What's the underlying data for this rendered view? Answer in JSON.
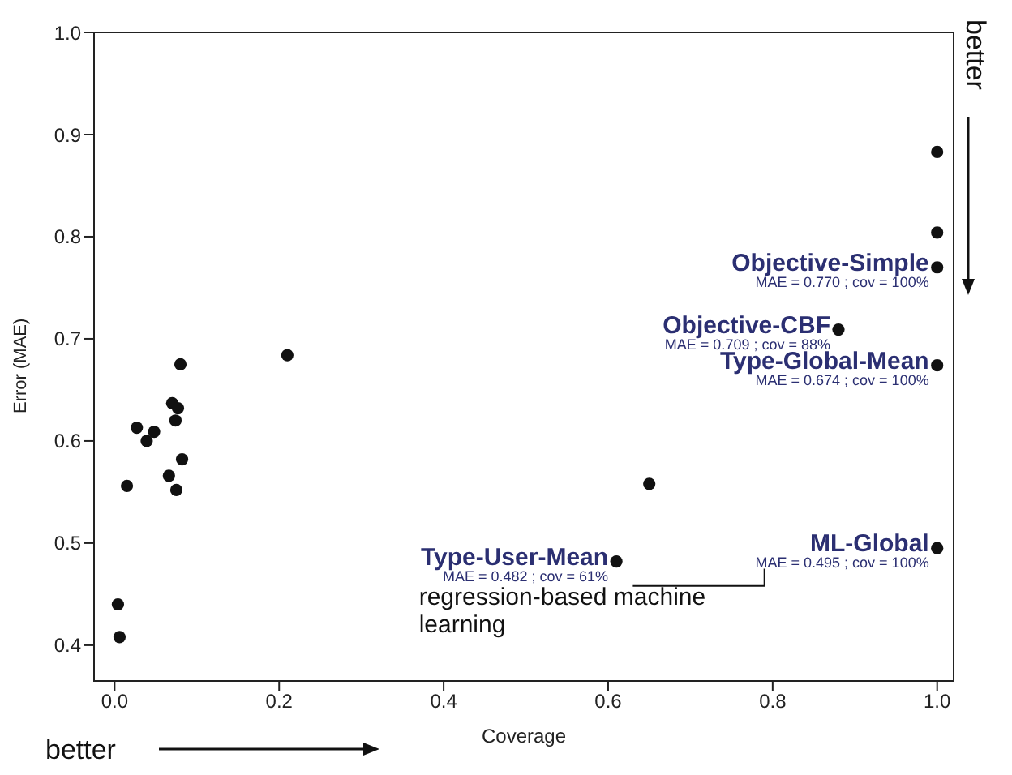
{
  "chart_data": {
    "type": "scatter",
    "xlabel": "Coverage",
    "ylabel": "Error (MAE)",
    "series": [
      {
        "color": "#111111",
        "x": [
          0.004,
          0.006,
          0.015,
          0.027,
          0.039,
          0.048,
          0.066,
          0.075,
          0.07,
          0.077,
          0.074,
          0.082,
          0.08,
          0.21,
          1.0,
          1.0,
          1.0,
          0.88,
          1.0,
          0.65,
          0.61,
          1.0
        ],
        "values": [
          0.44,
          0.408,
          0.556,
          0.613,
          0.6,
          0.609,
          0.566,
          0.552,
          0.637,
          0.632,
          0.62,
          0.582,
          0.675,
          0.684,
          0.883,
          0.804,
          0.77,
          0.709,
          0.674,
          0.558,
          0.482,
          0.495
        ]
      }
    ],
    "xlim": [
      -0.025,
      1.02
    ],
    "ylim": [
      0.365,
      1.0
    ],
    "xticks": [
      {
        "value": 0,
        "label": "0.0"
      },
      0.2,
      0.4,
      0.6,
      0.8,
      {
        "value": 1,
        "label": "1.0"
      }
    ],
    "yticks": [
      0.4,
      0.5,
      0.6,
      0.7,
      0.8,
      0.9,
      {
        "value": 1,
        "label": "1.0"
      }
    ],
    "grid": false,
    "legend": false,
    "marker": "circle",
    "annotations": [
      {
        "text": "Objective-Simple\nMAE = 0.770 ; cov = 100%",
        "x": 1.0,
        "y": 0.77
      },
      {
        "text": "Objective-CBF\nMAE = 0.709 ; cov = 88%",
        "x": 0.88,
        "y": 0.709
      },
      {
        "text": "Type-Global-Mean\nMAE = 0.674 ; cov = 100%",
        "x": 1.0,
        "y": 0.674
      },
      {
        "text": "Type-User-Mean\nMAE = 0.482 ; cov = 61%",
        "x": 0.61,
        "y": 0.482
      },
      {
        "text": "ML-Global\nMAE = 0.495 ; cov = 100%",
        "x": 1.0,
        "y": 0.495
      },
      "better",
      "better",
      "regression-based machine\nlearning"
    ]
  }
}
